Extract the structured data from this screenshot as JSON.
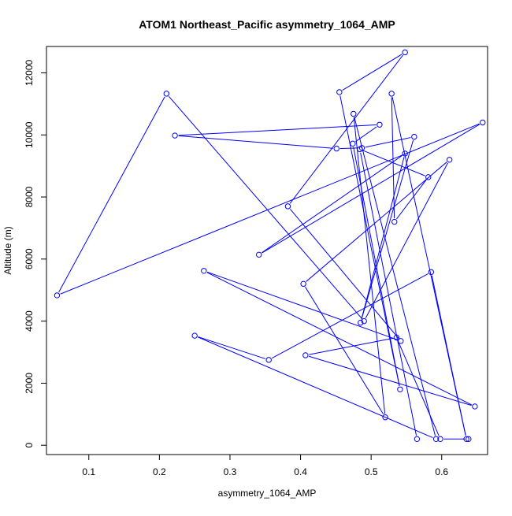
{
  "chart_data": {
    "type": "line",
    "title": "ATOM1 Northeast_Pacific asymmetry_1064_AMP",
    "xlabel": "asymmetry_1064_AMP",
    "ylabel": "Altitude (m)",
    "xlim": [
      0.04,
      0.665
    ],
    "ylim": [
      -300,
      12850
    ],
    "x_ticks": [
      0.1,
      0.2,
      0.3,
      0.4,
      0.5,
      0.6
    ],
    "x_tick_labels": [
      "0.1",
      "0.2",
      "0.3",
      "0.4",
      "0.5",
      "0.6"
    ],
    "y_ticks": [
      0,
      2000,
      4000,
      6000,
      8000,
      10000,
      12000
    ],
    "y_tick_labels": [
      "0",
      "2000",
      "4000",
      "6000",
      "8000",
      "10000",
      "12000"
    ],
    "grid": false,
    "legend": "none",
    "series": [
      {
        "color": "#0000ff",
        "marker": "open-circle",
        "points": [
          [
            0.638,
            200
          ],
          [
            0.598,
            200
          ],
          [
            0.536,
            3470
          ],
          [
            0.407,
            2900
          ],
          [
            0.647,
            1250
          ],
          [
            0.263,
            5620
          ],
          [
            0.542,
            3360
          ],
          [
            0.382,
            7700
          ],
          [
            0.548,
            12660
          ],
          [
            0.455,
            11380
          ],
          [
            0.541,
            1800
          ],
          [
            0.474,
            9720
          ],
          [
            0.512,
            10330
          ],
          [
            0.222,
            9980
          ],
          [
            0.451,
            9560
          ],
          [
            0.487,
            9580
          ],
          [
            0.561,
            9940
          ],
          [
            0.485,
            3950
          ],
          [
            0.548,
            9400
          ],
          [
            0.341,
            6140
          ],
          [
            0.658,
            10400
          ],
          [
            0.055,
            4830
          ],
          [
            0.21,
            11330
          ],
          [
            0.49,
            4000
          ],
          [
            0.611,
            9200
          ],
          [
            0.404,
            5200
          ],
          [
            0.52,
            900
          ],
          [
            0.475,
            10680
          ],
          [
            0.592,
            200
          ],
          [
            0.25,
            3530
          ],
          [
            0.355,
            2750
          ],
          [
            0.585,
            5580
          ],
          [
            0.635,
            200
          ],
          [
            0.529,
            11330
          ],
          [
            0.533,
            7200
          ],
          [
            0.581,
            8640
          ],
          [
            0.484,
            9540
          ],
          [
            0.565,
            200
          ]
        ]
      }
    ]
  }
}
